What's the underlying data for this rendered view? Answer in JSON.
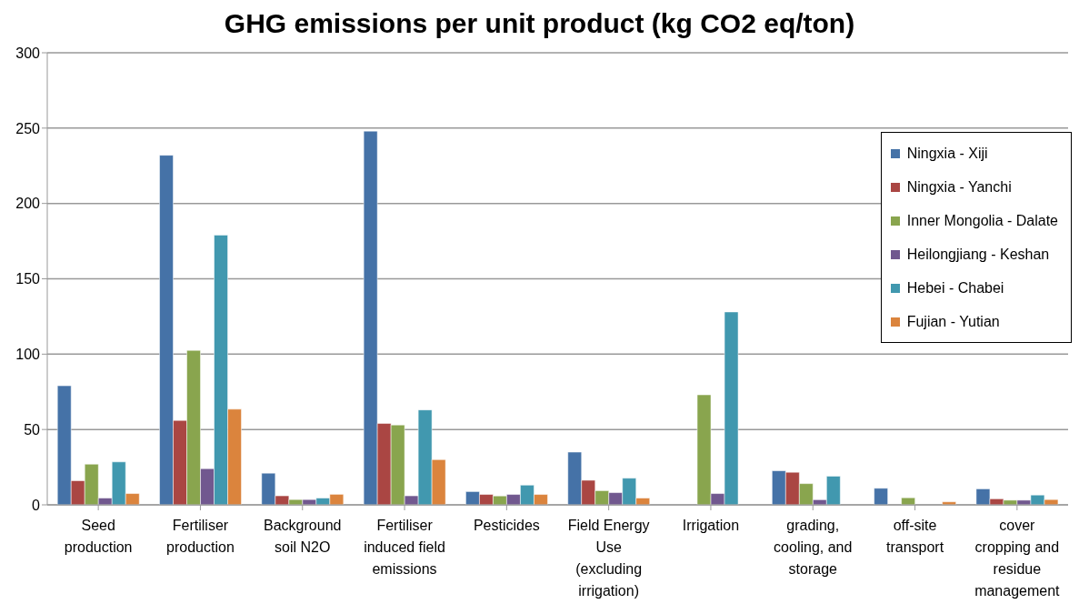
{
  "chart_data": {
    "type": "bar",
    "title": "GHG emissions per unit product (kg CO2 eq/ton)",
    "categories": [
      "Seed production",
      "Fertiliser production",
      "Background soil N2O",
      "Fertiliser induced field emissions",
      "Pesticides",
      "Field Energy Use (excluding irrigation)",
      "Irrigation",
      "grading, cooling, and storage",
      "off-site transport",
      "cover cropping and residue management"
    ],
    "series": [
      {
        "name": "Ningxia - Xiji",
        "color": "#4572a7",
        "values": [
          79,
          232,
          21,
          248,
          8.8,
          35,
          0,
          22.6,
          11,
          10.6
        ]
      },
      {
        "name": "Ningxia - Yanchi",
        "color": "#aa4643",
        "values": [
          16,
          56,
          6,
          54,
          6.9,
          16.3,
          0,
          21.6,
          null,
          4
        ]
      },
      {
        "name": "Inner Mongolia - Dalate",
        "color": "#89a54e",
        "values": [
          27,
          102.5,
          3.5,
          53,
          5.9,
          9.4,
          73,
          14.1,
          4.7,
          3.1
        ]
      },
      {
        "name": "Heilongjiang - Keshan",
        "color": "#71588f",
        "values": [
          4.5,
          24,
          3.5,
          6,
          6.9,
          8.1,
          7.5,
          3.4,
          0,
          3.1
        ]
      },
      {
        "name": "Hebei - Chabei",
        "color": "#4198af",
        "values": [
          28.5,
          179,
          4.5,
          63,
          13.1,
          17.7,
          128,
          19,
          null,
          6.5
        ]
      },
      {
        "name": "Fujian - Yutian",
        "color": "#db843d",
        "values": [
          7.5,
          63.5,
          7,
          30,
          6.9,
          4.5,
          null,
          null,
          2,
          3.5
        ]
      }
    ],
    "ylim": [
      0,
      300
    ],
    "yticks": [
      0,
      50,
      100,
      150,
      200,
      250,
      300
    ],
    "grid": "y",
    "legend": "top right"
  }
}
